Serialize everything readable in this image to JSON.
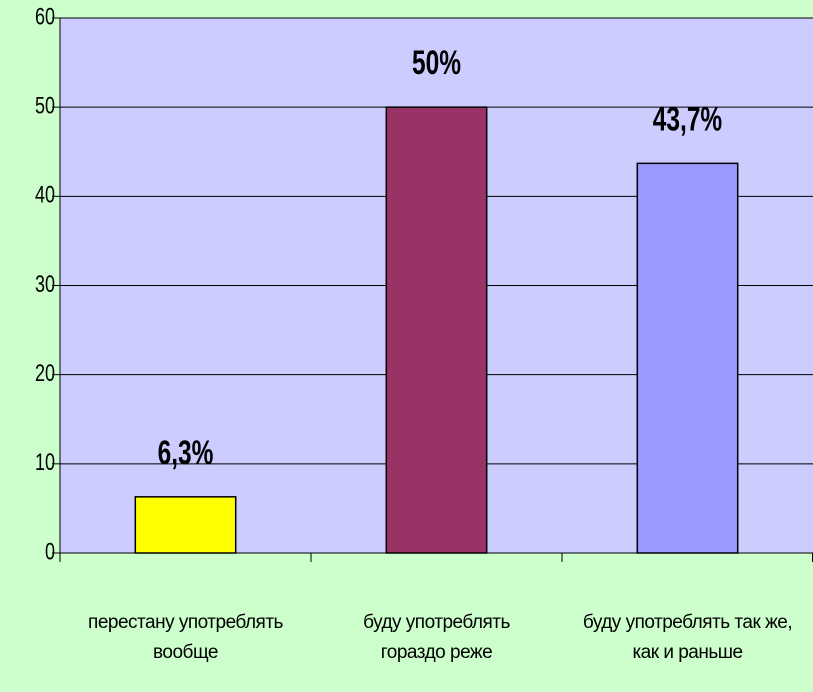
{
  "chart_data": {
    "type": "bar",
    "categories": [
      "перестану употреблять вообще",
      "буду употреблять гораздо реже",
      "буду употреблять так же, как и раньше"
    ],
    "values": [
      6.3,
      50,
      43.7
    ],
    "value_labels": [
      "6,3%",
      "50%",
      "43,7%"
    ],
    "colors": [
      "#ffff00",
      "#993366",
      "#9999ff"
    ],
    "ylim": [
      0,
      60
    ],
    "yticks": [
      0,
      10,
      20,
      30,
      40,
      50,
      60
    ],
    "grid": true
  }
}
